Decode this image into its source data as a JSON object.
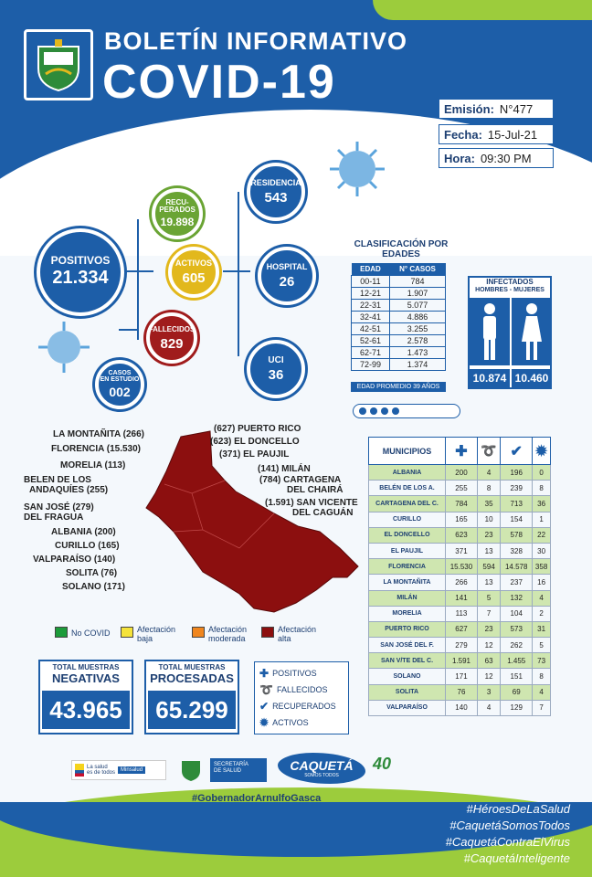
{
  "header": {
    "title_top": "BOLETÍN INFORMATIVO",
    "title_main": "COVID-19",
    "emision_label": "Emisión:",
    "emision_value": "N°477",
    "fecha_label": "Fecha:",
    "fecha_value": "15-Jul-21",
    "hora_label": "Hora:",
    "hora_value": "09:30 PM"
  },
  "stats": {
    "positivos": {
      "label": "POSITIVOS",
      "value": "21.334"
    },
    "recuperados": {
      "label1": "RECU-",
      "label2": "PERADOS",
      "value": "19.898"
    },
    "activos": {
      "label": "ACTIVOS",
      "value": "605"
    },
    "fallecidos": {
      "label": "FALLECIDOS",
      "value": "829"
    },
    "casos_estudio": {
      "label1": "CASOS",
      "label2": "EN ESTUDIO",
      "value": "002"
    },
    "residencia": {
      "label": "RESIDENCIA",
      "value": "543"
    },
    "hospital": {
      "label": "HOSPITAL",
      "value": "26"
    },
    "uci": {
      "label": "UCI",
      "value": "36"
    }
  },
  "age_table": {
    "title": "CLASIFICACIÓN POR EDADES",
    "col_edad": "EDAD",
    "col_casos": "N° CASOS",
    "rows": [
      {
        "edad": "00-11",
        "casos": "784"
      },
      {
        "edad": "12-21",
        "casos": "1.907"
      },
      {
        "edad": "22-31",
        "casos": "5.077"
      },
      {
        "edad": "32-41",
        "casos": "4.886"
      },
      {
        "edad": "42-51",
        "casos": "3.255"
      },
      {
        "edad": "52-61",
        "casos": "2.578"
      },
      {
        "edad": "62-71",
        "casos": "1.473"
      },
      {
        "edad": "72-99",
        "casos": "1.374"
      }
    ],
    "footer": "EDAD PROMEDIO 39 AÑOS"
  },
  "infectados": {
    "title": "INFECTADOS",
    "subtitle": "HOMBRES - MUJERES",
    "hombres": "10.874",
    "mujeres": "10.460"
  },
  "map_labels": {
    "la_montanita": "LA MONTAÑITA (266)",
    "florencia": "FLORENCIA (15.530)",
    "morelia": "MORELIA (113)",
    "belen1": "BELEN DE LOS",
    "belen2": "ANDAQUÍES (255)",
    "san_jose1": "SAN JOSÉ (279)",
    "san_jose2": "DEL FRAGUA",
    "albania": "ALBANIA (200)",
    "curillo": "CURILLO (165)",
    "valparaiso": "VALPARAÍSO (140)",
    "solita": "SOLITA (76)",
    "solano": "SOLANO (171)",
    "puerto_rico": "(627) PUERTO RICO",
    "el_doncello": "(623) EL DONCELLO",
    "el_paujil": "(371) EL PAUJIL",
    "milan": "(141) MILÁN",
    "cartagena1": "(784) CARTAGENA",
    "cartagena2": "DEL CHAIRÁ",
    "san_vicente1": "(1.591) SAN VICENTE",
    "san_vicente2": "DEL CAGUÁN"
  },
  "legend": {
    "no_covid": "No COVID",
    "baja1": "Afectación",
    "baja2": "baja",
    "moderada1": "Afectación",
    "moderada2": "moderada",
    "alta1": "Afectación",
    "alta2": "alta",
    "colors": {
      "no_covid": "#1c9b3a",
      "baja": "#f5e33a",
      "moderada": "#f0861e",
      "alta": "#8c0f0f"
    }
  },
  "totals": {
    "negativas_label1": "TOTAL MUESTRAS",
    "negativas_label2": "NEGATIVAS",
    "negativas_value": "43.965",
    "procesadas_label1": "TOTAL MUESTRAS",
    "procesadas_label2": "PROCESADAS",
    "procesadas_value": "65.299"
  },
  "key": {
    "positivos": "POSITIVOS",
    "fallecidos": "FALLECIDOS",
    "recuperados": "RECUPERADOS",
    "activos": "ACTIVOS"
  },
  "municipios": {
    "header": "MUNICIPIOS",
    "rows": [
      {
        "name": "ALBANIA",
        "pos": "200",
        "fal": "4",
        "rec": "196",
        "act": "0"
      },
      {
        "name": "BELÉN DE LOS A.",
        "pos": "255",
        "fal": "8",
        "rec": "239",
        "act": "8"
      },
      {
        "name": "CARTAGENA DEL C.",
        "pos": "784",
        "fal": "35",
        "rec": "713",
        "act": "36"
      },
      {
        "name": "CURILLO",
        "pos": "165",
        "fal": "10",
        "rec": "154",
        "act": "1"
      },
      {
        "name": "EL DONCELLO",
        "pos": "623",
        "fal": "23",
        "rec": "578",
        "act": "22"
      },
      {
        "name": "EL PAUJIL",
        "pos": "371",
        "fal": "13",
        "rec": "328",
        "act": "30"
      },
      {
        "name": "FLORENCIA",
        "pos": "15.530",
        "fal": "594",
        "rec": "14.578",
        "act": "358"
      },
      {
        "name": "LA MONTAÑITA",
        "pos": "266",
        "fal": "13",
        "rec": "237",
        "act": "16"
      },
      {
        "name": "MILÁN",
        "pos": "141",
        "fal": "5",
        "rec": "132",
        "act": "4"
      },
      {
        "name": "MORELIA",
        "pos": "113",
        "fal": "7",
        "rec": "104",
        "act": "2"
      },
      {
        "name": "PUERTO RICO",
        "pos": "627",
        "fal": "23",
        "rec": "573",
        "act": "31"
      },
      {
        "name": "SAN JOSÉ DEL F.",
        "pos": "279",
        "fal": "12",
        "rec": "262",
        "act": "5"
      },
      {
        "name": "SAN V/TE DEL C.",
        "pos": "1.591",
        "fal": "63",
        "rec": "1.455",
        "act": "73"
      },
      {
        "name": "SOLANO",
        "pos": "171",
        "fal": "12",
        "rec": "151",
        "act": "8"
      },
      {
        "name": "SOLITA",
        "pos": "76",
        "fal": "3",
        "rec": "69",
        "act": "4"
      },
      {
        "name": "VALPARAÍSO",
        "pos": "140",
        "fal": "4",
        "rec": "129",
        "act": "7"
      }
    ]
  },
  "footer": {
    "gobernador": "#GobernadorArnulfoGasca",
    "hashtags": [
      "#HéroesDeLaSalud",
      "#CaquetáSomosTodos",
      "#CaquetáContraElVirus",
      "#CaquetáInteligente"
    ],
    "minsalud1": "La salud",
    "minsalud2": "es de todos",
    "minsalud3": "Minsalud",
    "secretaria1": "SECRETARÍA",
    "secretaria2": "DE SALUD",
    "caqueta": "CAQUETÁ",
    "caqueta_sub": "SOMOS TODOS"
  }
}
